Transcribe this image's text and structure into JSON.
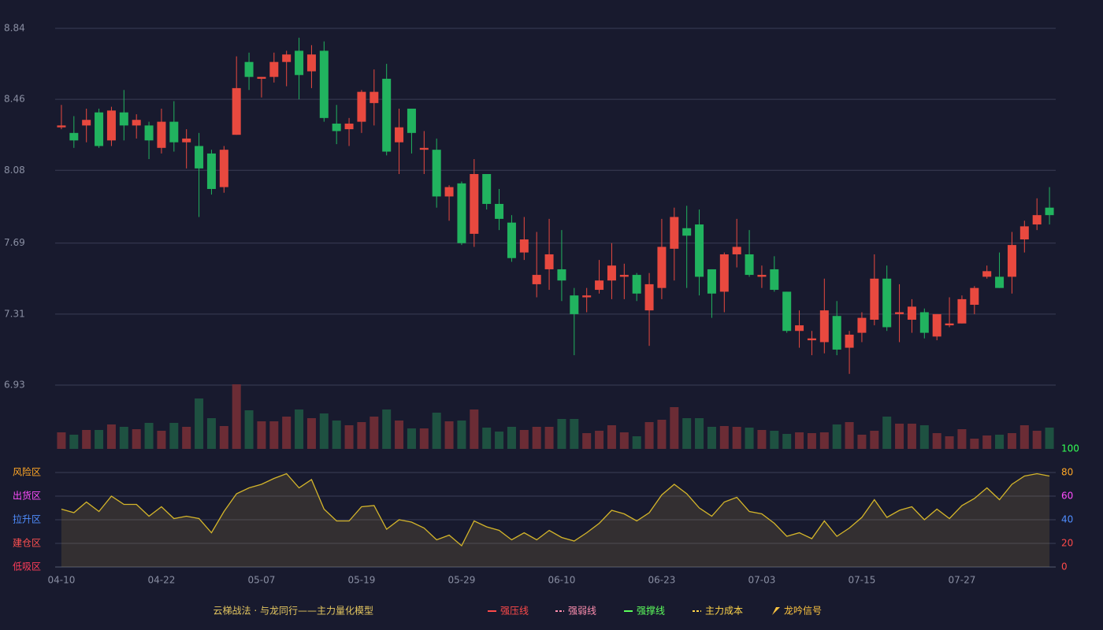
{
  "chart_data": [
    {
      "type": "candlestick",
      "open": [
        8.31,
        8.28,
        8.32,
        8.39,
        8.24,
        8.39,
        8.32,
        8.32,
        8.2,
        8.34,
        8.23,
        8.21,
        8.17,
        7.99,
        8.27,
        8.66,
        8.57,
        8.58,
        8.66,
        8.72,
        8.61,
        8.72,
        8.33,
        8.3,
        8.34,
        8.44,
        8.57,
        8.23,
        8.41,
        8.19,
        8.19,
        7.94,
        8.01,
        7.74,
        8.06,
        7.9,
        7.8,
        7.64,
        7.47,
        7.55,
        7.55,
        7.41,
        7.4,
        7.44,
        7.49,
        7.51,
        7.52,
        7.33,
        7.45,
        7.66,
        7.77,
        7.79,
        7.55,
        7.43,
        7.63,
        7.63,
        7.51,
        7.55,
        7.43,
        7.22,
        7.17,
        7.16,
        7.3,
        7.13,
        7.21,
        7.28,
        7.5,
        7.31,
        7.28,
        7.32,
        7.19,
        7.25,
        7.26,
        7.36,
        7.51,
        7.51,
        7.51,
        7.71,
        7.79,
        7.88
      ],
      "high": [
        8.43,
        8.37,
        8.41,
        8.41,
        8.42,
        8.51,
        8.38,
        8.34,
        8.41,
        8.45,
        8.3,
        8.28,
        8.19,
        8.21,
        8.69,
        8.71,
        8.58,
        8.71,
        8.72,
        8.79,
        8.75,
        8.77,
        8.43,
        8.36,
        8.51,
        8.62,
        8.65,
        8.41,
        8.41,
        8.29,
        8.25,
        8.0,
        8.02,
        8.14,
        8.06,
        7.98,
        7.84,
        7.83,
        7.75,
        7.82,
        7.76,
        7.45,
        7.45,
        7.6,
        7.69,
        7.58,
        7.53,
        7.53,
        7.82,
        7.88,
        7.89,
        7.87,
        7.55,
        7.64,
        7.82,
        7.76,
        7.57,
        7.62,
        7.43,
        7.33,
        7.22,
        7.5,
        7.38,
        7.22,
        7.32,
        7.63,
        7.57,
        7.47,
        7.39,
        7.34,
        7.31,
        7.4,
        7.41,
        7.46,
        7.57,
        7.64,
        7.75,
        7.81,
        7.93,
        7.99
      ],
      "low": [
        8.3,
        8.2,
        8.23,
        8.2,
        8.21,
        8.24,
        8.25,
        8.14,
        8.17,
        8.18,
        8.09,
        7.83,
        7.95,
        7.96,
        8.27,
        8.51,
        8.47,
        8.55,
        8.53,
        8.46,
        8.52,
        8.34,
        8.22,
        8.21,
        8.28,
        8.32,
        8.16,
        8.06,
        8.17,
        8.06,
        7.88,
        7.81,
        7.68,
        7.67,
        7.87,
        7.76,
        7.59,
        7.6,
        7.4,
        7.44,
        7.38,
        7.09,
        7.32,
        7.42,
        7.39,
        7.39,
        7.38,
        7.14,
        7.39,
        7.49,
        7.45,
        7.41,
        7.29,
        7.32,
        7.56,
        7.51,
        7.45,
        7.43,
        7.21,
        7.13,
        7.09,
        7.1,
        7.09,
        6.99,
        7.16,
        7.25,
        7.22,
        7.16,
        7.21,
        7.18,
        7.17,
        7.24,
        7.26,
        7.31,
        7.5,
        7.45,
        7.42,
        7.64,
        7.76,
        7.79
      ],
      "close": [
        8.32,
        8.24,
        8.35,
        8.21,
        8.4,
        8.32,
        8.35,
        8.24,
        8.34,
        8.23,
        8.25,
        8.09,
        7.98,
        8.19,
        8.52,
        8.58,
        8.58,
        8.66,
        8.7,
        8.59,
        8.7,
        8.36,
        8.29,
        8.33,
        8.5,
        8.5,
        8.18,
        8.31,
        8.28,
        8.2,
        7.94,
        7.99,
        7.69,
        8.06,
        7.9,
        7.82,
        7.61,
        7.71,
        7.52,
        7.63,
        7.49,
        7.31,
        7.41,
        7.49,
        7.57,
        7.52,
        7.42,
        7.47,
        7.67,
        7.83,
        7.73,
        7.51,
        7.42,
        7.63,
        7.67,
        7.52,
        7.52,
        7.44,
        7.22,
        7.25,
        7.18,
        7.33,
        7.12,
        7.2,
        7.29,
        7.5,
        7.24,
        7.32,
        7.35,
        7.21,
        7.31,
        7.26,
        7.39,
        7.45,
        7.54,
        7.45,
        7.68,
        7.78,
        7.84,
        7.84
      ],
      "up_color": "#e8493f",
      "down_color": "#21b35f",
      "ylim": [
        6.93,
        8.84
      ],
      "yticks": [
        6.93,
        7.31,
        7.69,
        8.08,
        8.46,
        8.84
      ],
      "grid": true
    },
    {
      "type": "bar",
      "values": [
        21,
        18,
        24,
        24,
        31,
        28,
        25,
        33,
        23,
        33,
        28,
        64,
        39,
        29,
        82,
        49,
        35,
        35,
        41,
        50,
        39,
        45,
        36,
        30,
        34,
        41,
        50,
        36,
        26,
        26,
        46,
        35,
        36,
        50,
        27,
        22,
        28,
        24,
        28,
        28,
        38,
        38,
        20,
        23,
        30,
        21,
        16,
        34,
        37,
        53,
        39,
        39,
        28,
        29,
        28,
        27,
        24,
        23,
        19,
        21,
        20,
        21,
        31,
        34,
        18,
        23,
        41,
        32,
        32,
        30,
        20,
        16,
        25,
        13,
        17,
        18,
        20,
        30,
        23,
        27
      ],
      "up_color": "#6b2c35",
      "down_color": "#1e5141"
    },
    {
      "type": "line",
      "categories": [
        "04-10",
        null,
        null,
        null,
        null,
        null,
        null,
        null,
        "04-22",
        null,
        null,
        null,
        null,
        null,
        null,
        null,
        "05-07",
        null,
        null,
        null,
        null,
        null,
        null,
        null,
        "05-19",
        null,
        null,
        null,
        null,
        null,
        null,
        null,
        "05-29",
        null,
        null,
        null,
        null,
        null,
        null,
        null,
        "06-10",
        null,
        null,
        null,
        null,
        null,
        null,
        null,
        "06-23",
        null,
        null,
        null,
        null,
        null,
        null,
        null,
        "07-03",
        null,
        null,
        null,
        null,
        null,
        null,
        null,
        "07-15",
        null,
        null,
        null,
        null,
        null,
        null,
        null,
        "07-27",
        null,
        null,
        null,
        null,
        null,
        null,
        null
      ],
      "values": [
        49,
        46,
        55,
        47,
        60,
        53,
        53,
        43,
        51,
        41,
        43,
        41,
        29,
        47,
        62,
        67,
        70,
        75,
        79,
        67,
        74,
        49,
        39,
        39,
        51,
        52,
        32,
        40,
        38,
        33,
        23,
        27,
        18,
        39,
        34,
        31,
        23,
        29,
        23,
        31,
        25,
        22,
        29,
        37,
        48,
        45,
        39,
        46,
        61,
        70,
        62,
        50,
        43,
        55,
        59,
        47,
        45,
        37,
        26,
        29,
        24,
        39,
        26,
        33,
        42,
        57,
        42,
        48,
        51,
        40,
        49,
        41,
        52,
        58,
        67,
        57,
        70,
        77,
        79,
        77
      ],
      "color": "#d4b52a",
      "ylim": [
        0,
        100
      ],
      "yticks": [
        0,
        20,
        40,
        60,
        80,
        100
      ],
      "ytick_colors": [
        "#ff4a4a",
        "#ff4a4a",
        "#4f8dff",
        "#ff4dff",
        "#ffa726",
        "#33ff55"
      ],
      "zones": [
        {
          "label": "低吸区",
          "value": 0,
          "color": "#ff3d5a"
        },
        {
          "label": "建仓区",
          "value": 20,
          "color": "#ff5050"
        },
        {
          "label": "拉升区",
          "value": 40,
          "color": "#4f8dff"
        },
        {
          "label": "出货区",
          "value": 60,
          "color": "#ff4dff"
        },
        {
          "label": "风险区",
          "value": 80,
          "color": "#ffa726"
        }
      ]
    }
  ],
  "legend": {
    "title": "云梯战法 · 与龙同行——主力量化模型",
    "items": [
      {
        "name": "强压线",
        "color": "#ff4a4a",
        "style": "solid"
      },
      {
        "name": "强弱线",
        "color": "#ff8fb0",
        "style": "dashed"
      },
      {
        "name": "强撑线",
        "color": "#5cff5c",
        "style": "solid"
      },
      {
        "name": "主力成本",
        "color": "#ffd54a",
        "style": "dashed"
      },
      {
        "name": "龙吟信号",
        "color": "#ffc640",
        "style": "triangle"
      }
    ]
  }
}
